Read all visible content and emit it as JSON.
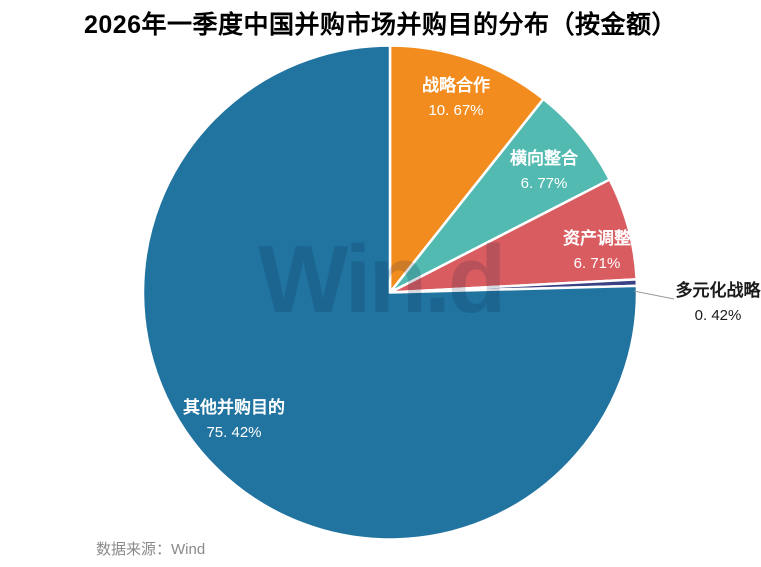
{
  "title": "2026年一季度中国并购市场并购目的分布（按金额）",
  "watermark": "Win.d",
  "source": "数据来源：Wind",
  "colors": {
    "slice_blue": "#2173A0",
    "slice_orange": "#F28C1F",
    "slice_teal": "#52BAB1",
    "slice_red": "#D95C60",
    "slice_navy": "#3A4284",
    "slice_border": "#FFFFFF",
    "leader_line": "#999999",
    "source_text": "#8A8A8A",
    "title_text": "#000000"
  },
  "chart_data": {
    "type": "pie",
    "title": "2026年一季度中国并购市场并购目的分布（按金额）",
    "unit": "percent",
    "start_angle_deg": 0,
    "direction": "clockwise",
    "legend": "none",
    "slices": [
      {
        "name": "战略合作",
        "value": 10.67,
        "pct_label": "10. 67%",
        "color": "#F28C1F",
        "label_inside": true
      },
      {
        "name": "横向整合",
        "value": 6.77,
        "pct_label": "6. 77%",
        "color": "#52BAB1",
        "label_inside": true
      },
      {
        "name": "资产调整",
        "value": 6.71,
        "pct_label": "6. 71%",
        "color": "#D95C60",
        "label_inside": true
      },
      {
        "name": "多元化战略",
        "value": 0.42,
        "pct_label": "0. 42%",
        "color": "#3A4284",
        "label_inside": false
      },
      {
        "name": "其他并购目的",
        "value": 75.42,
        "pct_label": "75. 42%",
        "color": "#2173A0",
        "label_inside": true
      }
    ],
    "source": "数据来源：Wind"
  }
}
